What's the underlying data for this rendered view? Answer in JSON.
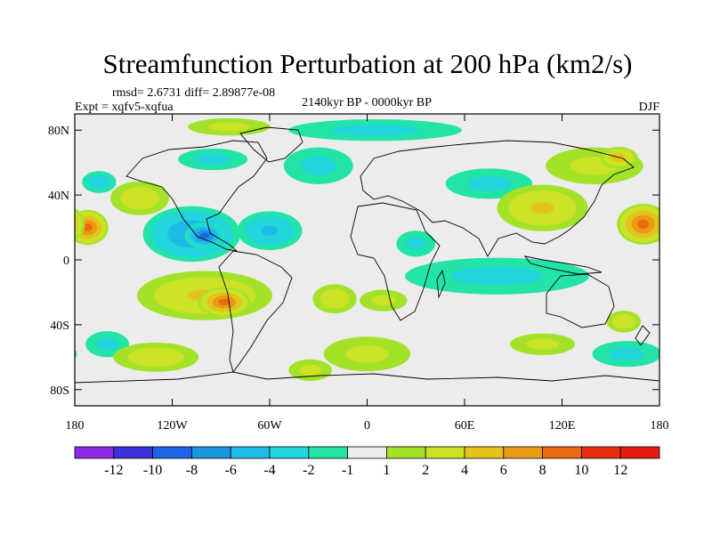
{
  "chart_data": {
    "type": "heatmap",
    "title": "Streamfunction Perturbation at 200 hPa (km2/s)",
    "stats_label": "rmsd= 2.6731 diff= 2.89877e-08",
    "experiment_label": "Expt = xqfv5-xqfua",
    "period_label": "2140kyr BP - 0000kyr BP",
    "season_label": "DJF",
    "x_range": [
      -180,
      180
    ],
    "y_range": [
      -90,
      90
    ],
    "x_ticks": [
      {
        "value": -180,
        "label": "180"
      },
      {
        "value": -120,
        "label": "120W"
      },
      {
        "value": -60,
        "label": "60W"
      },
      {
        "value": 0,
        "label": "0"
      },
      {
        "value": 60,
        "label": "60E"
      },
      {
        "value": 120,
        "label": "120E"
      },
      {
        "value": 180,
        "label": "180"
      }
    ],
    "y_ticks": [
      {
        "value": 80,
        "label": "80N"
      },
      {
        "value": 40,
        "label": "40N"
      },
      {
        "value": 0,
        "label": "0"
      },
      {
        "value": -40,
        "label": "40S"
      },
      {
        "value": -80,
        "label": "80S"
      }
    ],
    "levels": [
      "-12",
      "-10",
      "-8",
      "-6",
      "-4",
      "-2",
      "-1",
      "1",
      "2",
      "4",
      "6",
      "8",
      "10",
      "12"
    ],
    "colors": [
      "#8a2be2",
      "#3a2fd8",
      "#1e64e6",
      "#1c96e0",
      "#1dbbe6",
      "#20d6dc",
      "#22e3a8",
      "#ececec",
      "#a4e22a",
      "#cce224",
      "#e6c21c",
      "#eb9a14",
      "#ec6a12",
      "#e82e10",
      "#e41c10"
    ],
    "background": "#ececec",
    "anomalies": [
      {
        "lon": -172,
        "lat": 20,
        "rx": 14,
        "ry": 12,
        "value": 9
      },
      {
        "lon": 170,
        "lat": 22,
        "rx": 18,
        "ry": 14,
        "value": 9
      },
      {
        "lon": -165,
        "lat": 48,
        "rx": 14,
        "ry": 9,
        "value": -3
      },
      {
        "lon": -140,
        "lat": 38,
        "rx": 24,
        "ry": 14,
        "value": 3
      },
      {
        "lon": -108,
        "lat": 16,
        "rx": 35,
        "ry": 20,
        "value": -6
      },
      {
        "lon": -100,
        "lat": 15,
        "rx": 14,
        "ry": 9,
        "value": -9
      },
      {
        "lon": -60,
        "lat": 18,
        "rx": 25,
        "ry": 15,
        "value": -4
      },
      {
        "lon": -100,
        "lat": -22,
        "rx": 52,
        "ry": 19,
        "value": 4
      },
      {
        "lon": -88,
        "lat": -26,
        "rx": 18,
        "ry": 10,
        "value": 9
      },
      {
        "lon": -20,
        "lat": -24,
        "rx": 18,
        "ry": 12,
        "value": 3
      },
      {
        "lon": -95,
        "lat": 62,
        "rx": 32,
        "ry": 10,
        "value": -2
      },
      {
        "lon": -85,
        "lat": 82,
        "rx": 38,
        "ry": 8,
        "value": 2
      },
      {
        "lon": -30,
        "lat": 58,
        "rx": 32,
        "ry": 17,
        "value": -2
      },
      {
        "lon": 5,
        "lat": 80,
        "rx": 80,
        "ry": 10,
        "value": -2
      },
      {
        "lon": 75,
        "lat": 47,
        "rx": 40,
        "ry": 14,
        "value": -2
      },
      {
        "lon": 140,
        "lat": 58,
        "rx": 45,
        "ry": 17,
        "value": 2
      },
      {
        "lon": 155,
        "lat": 63,
        "rx": 14,
        "ry": 8,
        "value": 5
      },
      {
        "lon": 108,
        "lat": 32,
        "rx": 35,
        "ry": 18,
        "value": 4
      },
      {
        "lon": 30,
        "lat": 10,
        "rx": 18,
        "ry": 12,
        "value": -2
      },
      {
        "lon": 80,
        "lat": -10,
        "rx": 85,
        "ry": 17,
        "value": -2
      },
      {
        "lon": 10,
        "lat": -25,
        "rx": 22,
        "ry": 10,
        "value": 2
      },
      {
        "lon": 158,
        "lat": -38,
        "rx": 14,
        "ry": 9,
        "value": 3
      },
      {
        "lon": 160,
        "lat": -58,
        "rx": 32,
        "ry": 12,
        "value": -2
      },
      {
        "lon": -160,
        "lat": -52,
        "rx": 20,
        "ry": 12,
        "value": -2
      },
      {
        "lon": -130,
        "lat": -60,
        "rx": 35,
        "ry": 12,
        "value": 3
      },
      {
        "lon": 0,
        "lat": -58,
        "rx": 40,
        "ry": 16,
        "value": 2
      },
      {
        "lon": -35,
        "lat": -68,
        "rx": 20,
        "ry": 10,
        "value": 2
      },
      {
        "lon": 108,
        "lat": -52,
        "rx": 30,
        "ry": 10,
        "value": 2
      }
    ]
  }
}
